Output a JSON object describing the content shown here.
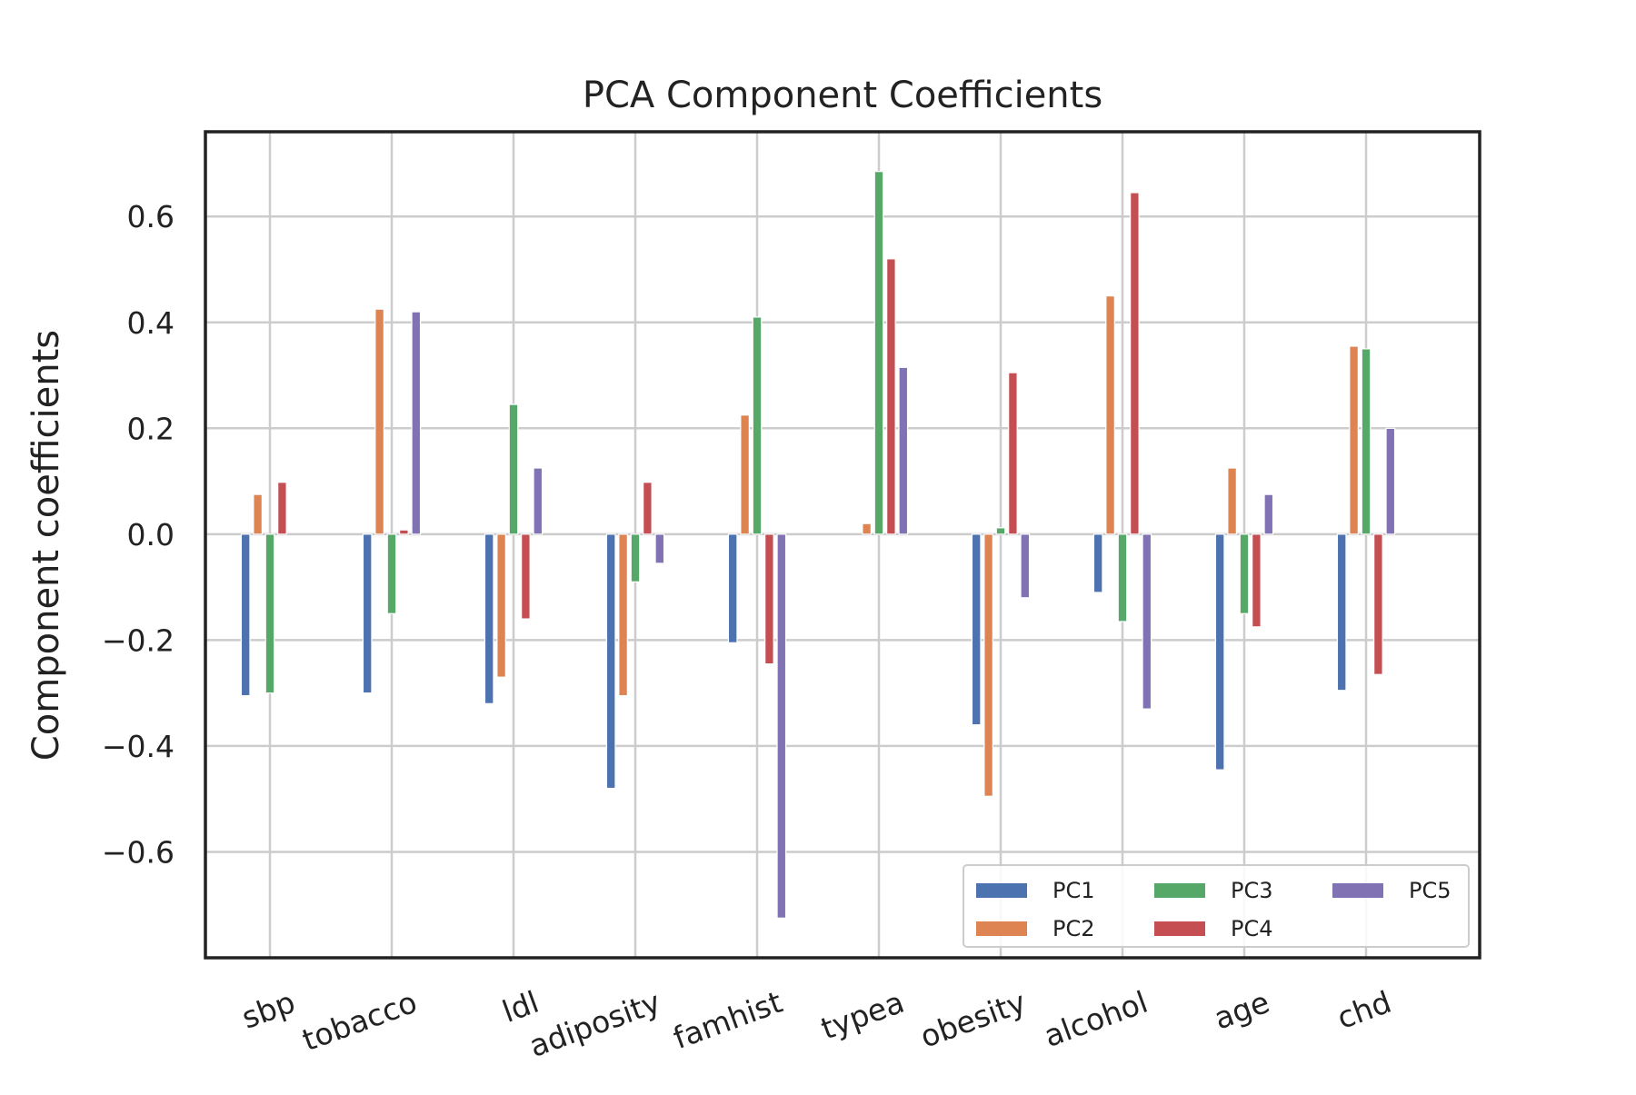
{
  "chart_data": {
    "type": "bar",
    "title": "PCA Component Coefficients",
    "xlabel": "",
    "ylabel": "Component coefficients",
    "ylim": [
      -0.8,
      0.76
    ],
    "yticks": [
      0.6,
      0.4,
      0.2,
      0.0,
      -0.2,
      -0.4,
      -0.6
    ],
    "ytick_labels": [
      "0.6",
      "0.4",
      "0.2",
      "0.0",
      "−0.2",
      "−0.4",
      "−0.6"
    ],
    "categories": [
      "sbp",
      "tobacco",
      "ldl",
      "adiposity",
      "famhist",
      "typea",
      "obesity",
      "alcohol",
      "age",
      "chd"
    ],
    "grid": true,
    "legend_position": "lower-right",
    "legend_columns": 3,
    "series": [
      {
        "name": "PC1",
        "color": "#4c72b0",
        "values": [
          -0.305,
          -0.3,
          -0.32,
          -0.48,
          -0.205,
          0.0,
          -0.36,
          -0.11,
          -0.445,
          -0.295
        ]
      },
      {
        "name": "PC2",
        "color": "#dd8452",
        "values": [
          0.075,
          0.425,
          -0.27,
          -0.305,
          0.225,
          0.02,
          -0.495,
          0.45,
          0.125,
          0.355
        ]
      },
      {
        "name": "PC3",
        "color": "#55a868",
        "values": [
          -0.3,
          -0.15,
          0.245,
          -0.09,
          0.41,
          0.685,
          0.012,
          -0.165,
          -0.15,
          0.35
        ]
      },
      {
        "name": "PC4",
        "color": "#c44e52",
        "values": [
          0.098,
          0.008,
          -0.16,
          0.098,
          -0.245,
          0.52,
          0.305,
          0.645,
          -0.175,
          -0.265
        ]
      },
      {
        "name": "PC5",
        "color": "#8172b3",
        "values": [
          0.0,
          0.42,
          0.125,
          -0.055,
          -0.725,
          0.315,
          -0.12,
          -0.33,
          0.075,
          0.2
        ]
      }
    ]
  }
}
